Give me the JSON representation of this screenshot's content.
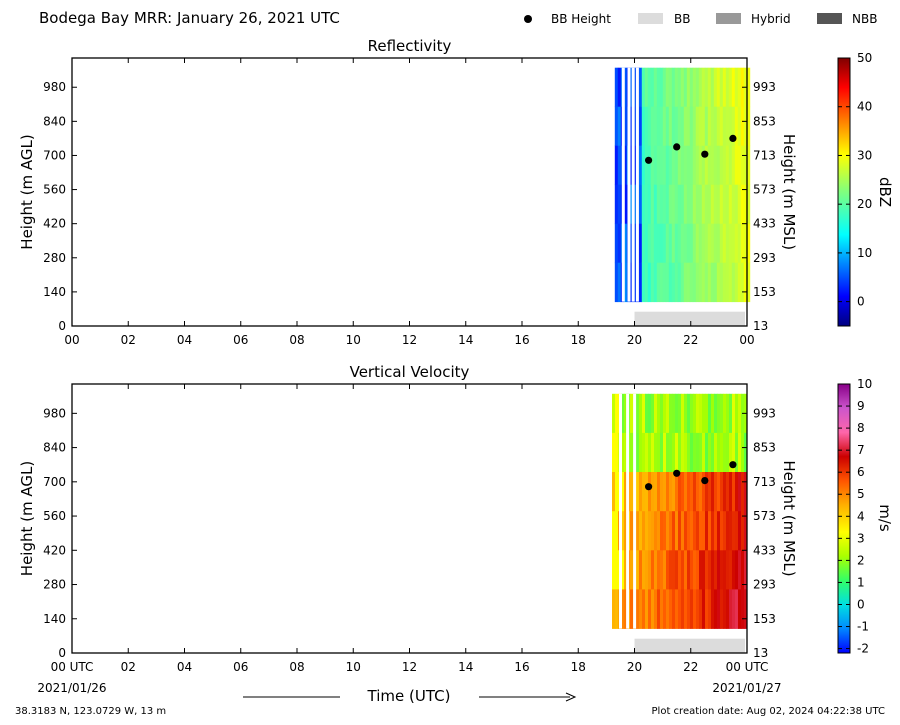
{
  "header": {
    "title": "Bodega Bay MRR:  January 26, 2021 UTC",
    "legend": [
      {
        "label": "BB Height",
        "kind": "dot",
        "color": "#000000"
      },
      {
        "label": "BB",
        "kind": "swatch",
        "color": "#dcdcdc"
      },
      {
        "label": "Hybrid",
        "kind": "swatch",
        "color": "#999999"
      },
      {
        "label": "NBB",
        "kind": "swatch",
        "color": "#555555"
      }
    ]
  },
  "footer": {
    "location": "38.3183 N, 123.0729 W, 13 m",
    "creation": "Plot creation date: Aug 02, 2024 04:22:38 UTC",
    "xlabel": "Time (UTC)",
    "date_start": "2021/01/26",
    "date_end": "2021/01/27"
  },
  "chart_data": [
    {
      "type": "heatmap",
      "title": "Reflectivity",
      "xlabel": "",
      "ylabel": "Height (m AGL)",
      "ylabel_right": "Height (m MSL)",
      "xlim": [
        0,
        24
      ],
      "ylim": [
        0,
        1100
      ],
      "x_ticks": [
        "00",
        "02",
        "04",
        "06",
        "08",
        "10",
        "12",
        "14",
        "16",
        "18",
        "20",
        "22",
        "00"
      ],
      "y_ticks": [
        0,
        140,
        280,
        420,
        560,
        700,
        840,
        980
      ],
      "y_ticks_right": [
        13,
        153,
        293,
        433,
        573,
        713,
        853,
        993
      ],
      "data_start_hour": 19.3,
      "data_end_hour": 24,
      "data_bottom_m": 100,
      "data_top_m": 1060,
      "bb_bar": {
        "start_hour": 20.0,
        "end_hour": 24,
        "type": "BB"
      },
      "bb_height_points": [
        {
          "time": 20.5,
          "height": 680
        },
        {
          "time": 21.5,
          "height": 735
        },
        {
          "time": 22.5,
          "height": 705
        },
        {
          "time": 23.5,
          "height": 770
        }
      ],
      "colorbar": {
        "label": "dBZ",
        "min": -5,
        "max": 50,
        "ticks": [
          0,
          10,
          20,
          30,
          40,
          50
        ]
      }
    },
    {
      "type": "heatmap",
      "title": "Vertical Velocity",
      "xlabel": "",
      "ylabel": "Height (m AGL)",
      "ylabel_right": "Height (m MSL)",
      "xlim": [
        0,
        24
      ],
      "ylim": [
        0,
        1100
      ],
      "x_ticks": [
        "00 UTC",
        "02",
        "04",
        "06",
        "08",
        "10",
        "12",
        "14",
        "16",
        "18",
        "20",
        "22",
        "00 UTC"
      ],
      "y_ticks": [
        0,
        140,
        280,
        420,
        560,
        700,
        840,
        980
      ],
      "y_ticks_right": [
        13,
        153,
        293,
        433,
        573,
        713,
        853,
        993
      ],
      "data_start_hour": 19.2,
      "data_end_hour": 24,
      "data_bottom_m": 100,
      "data_top_m": 1060,
      "bb_bar": {
        "start_hour": 20.0,
        "end_hour": 24,
        "type": "BB"
      },
      "bb_height_points": [
        {
          "time": 20.5,
          "height": 680
        },
        {
          "time": 21.5,
          "height": 735
        },
        {
          "time": 22.5,
          "height": 705
        },
        {
          "time": 23.5,
          "height": 770
        }
      ],
      "colorbar": {
        "label": "m/s",
        "min": -2.2,
        "max": 10,
        "ticks": [
          -2,
          -1,
          0,
          1,
          2,
          3,
          4,
          5,
          6,
          7,
          8,
          9,
          10
        ]
      }
    }
  ]
}
